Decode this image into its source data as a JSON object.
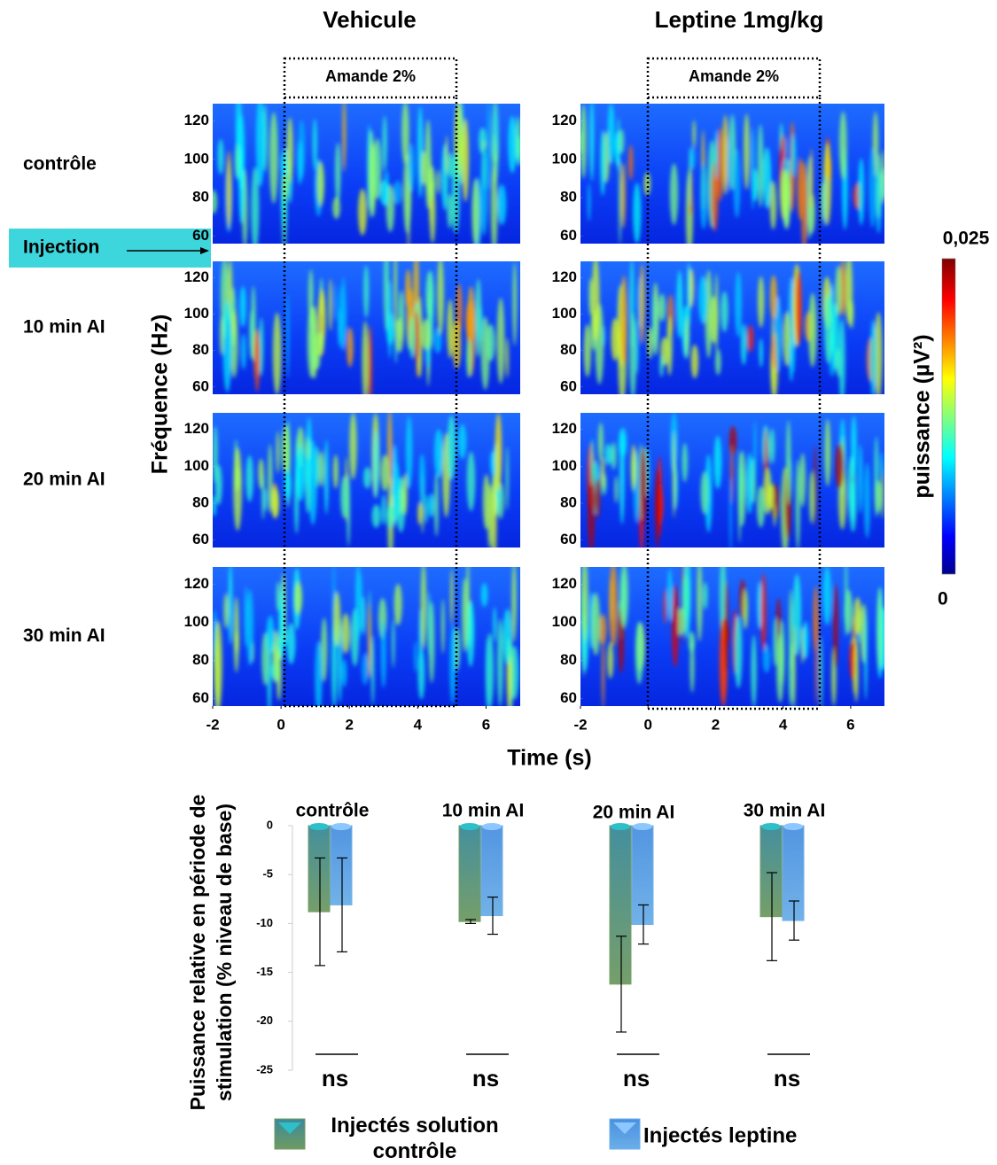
{
  "chart_data": [
    {
      "type": "spectrogram",
      "columns": [
        "Vehicule",
        "Leptine 1mg/kg"
      ],
      "rows": [
        "contrôle",
        "10 min AI",
        "20 min AI",
        "30 min AI"
      ],
      "annotation": "Amande 2%",
      "event": "Injection",
      "xlabel": "Time (s)",
      "ylabel": "Fréquence (Hz)",
      "xlim": [
        -2,
        7
      ],
      "xticks": [
        -2,
        0,
        2,
        4,
        6
      ],
      "ylim": [
        56,
        129
      ],
      "yticks": [
        60,
        80,
        100,
        120
      ],
      "colorbar": {
        "label": "puissance (µV²)",
        "lim": [
          0,
          0.025
        ],
        "ticks": [
          0,
          {
            "value": 0.025,
            "label": "0,025"
          }
        ]
      }
    },
    {
      "type": "bar",
      "ylabel": [
        "Puissance relative en période de",
        "stimulation (% niveau de base)"
      ],
      "categories": [
        "contrôle",
        "10 min AI",
        "20 min AI",
        "30 min AI"
      ],
      "series": [
        {
          "name": "Injectés solution contrôle",
          "color": "#6f9a62",
          "values": [
            -8.8,
            -9.8,
            -16.2,
            -9.3
          ],
          "errors": [
            5.5,
            0.2,
            4.9,
            4.5
          ]
        },
        {
          "name": "Injectés leptine",
          "color": "#6aaee8",
          "values": [
            -8.1,
            -9.2,
            -10.1,
            -9.7
          ],
          "errors": [
            4.8,
            1.9,
            2.0,
            2.0
          ]
        }
      ],
      "annotations": [
        "ns",
        "ns",
        "ns",
        "ns"
      ],
      "ylim": [
        -25,
        0
      ],
      "yticks": [
        0,
        -5,
        -10,
        -15,
        -20,
        -25
      ]
    }
  ]
}
